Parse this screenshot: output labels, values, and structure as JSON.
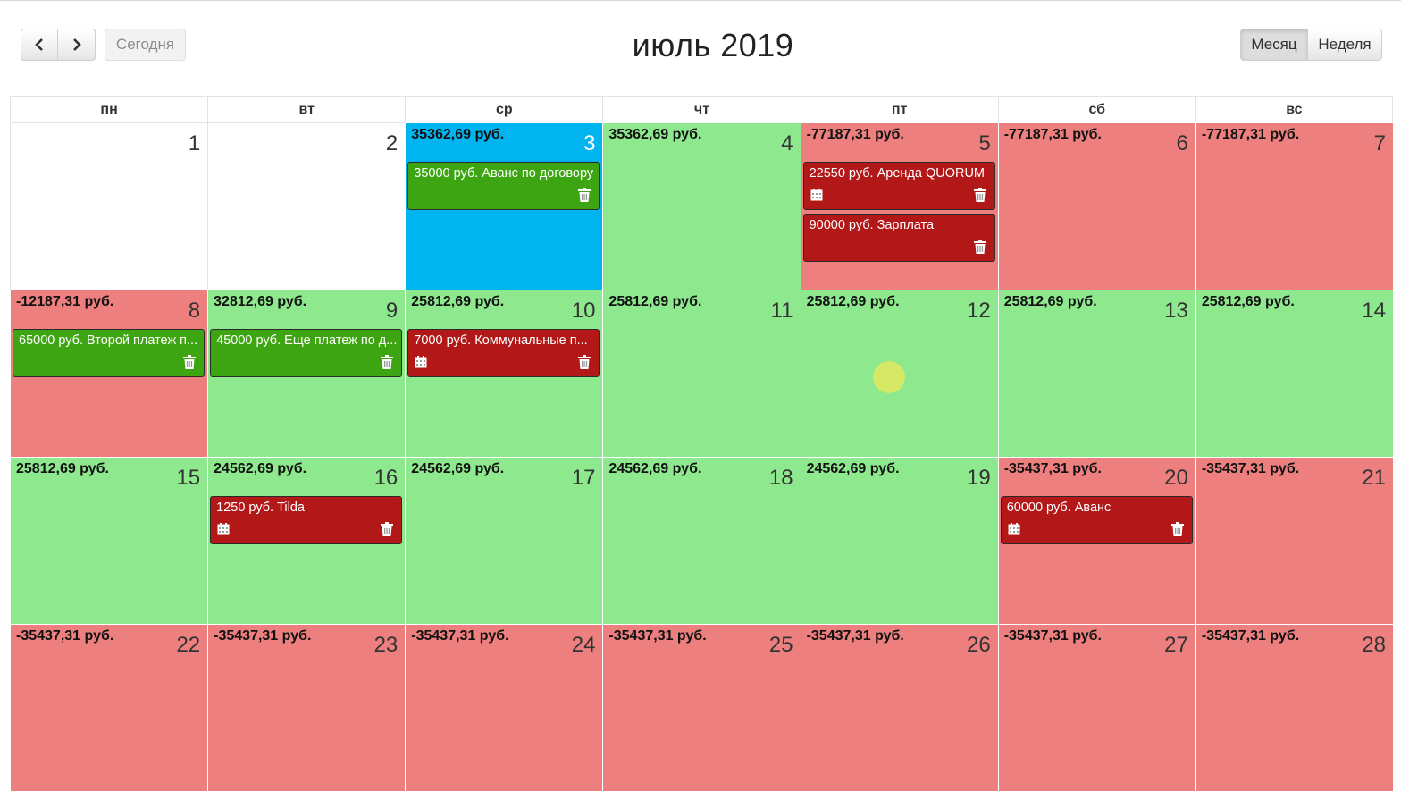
{
  "toolbar": {
    "prev_icon": "chevron-left-icon",
    "next_icon": "chevron-right-icon",
    "today_label": "Сегодня",
    "title": "июль 2019",
    "month_label": "Месяц",
    "week_label": "Неделя"
  },
  "weekdays": [
    "пн",
    "вт",
    "ср",
    "чт",
    "пт",
    "сб",
    "вс"
  ],
  "colors": {
    "positive": "#8ee88e",
    "negative": "#ed7f7f",
    "today": "#00b4ef",
    "income_event": "#3ea512",
    "expense_event": "#b21818"
  },
  "weeks": [
    [
      {
        "day": "1",
        "state": "neutral",
        "balance": ""
      },
      {
        "day": "2",
        "state": "neutral",
        "balance": ""
      },
      {
        "day": "3",
        "state": "today",
        "balance": "35362,69 руб.",
        "events": [
          {
            "text": "35000 руб. Аванс по договору",
            "type": "income",
            "calendar_icon": false
          }
        ]
      },
      {
        "day": "4",
        "state": "pos",
        "balance": "35362,69 руб."
      },
      {
        "day": "5",
        "state": "neg",
        "balance": "-77187,31 руб.",
        "events": [
          {
            "text": "22550 руб. Аренда QUORUM",
            "type": "expense",
            "calendar_icon": true
          },
          {
            "text": "90000 руб. Зарплата",
            "type": "expense",
            "calendar_icon": false
          }
        ]
      },
      {
        "day": "6",
        "state": "neg",
        "balance": "-77187,31 руб."
      },
      {
        "day": "7",
        "state": "neg",
        "balance": "-77187,31 руб."
      }
    ],
    [
      {
        "day": "8",
        "state": "neg",
        "balance": "-12187,31 руб.",
        "events": [
          {
            "text": "65000 руб. Второй платеж п...",
            "type": "income",
            "calendar_icon": false
          }
        ]
      },
      {
        "day": "9",
        "state": "pos",
        "balance": "32812,69 руб.",
        "events": [
          {
            "text": "45000 руб. Еще платеж по д...",
            "type": "income",
            "calendar_icon": false
          }
        ]
      },
      {
        "day": "10",
        "state": "pos",
        "balance": "25812,69 руб.",
        "events": [
          {
            "text": "7000 руб. Коммунальные п...",
            "type": "expense",
            "calendar_icon": true
          }
        ]
      },
      {
        "day": "11",
        "state": "pos",
        "balance": "25812,69 руб."
      },
      {
        "day": "12",
        "state": "pos",
        "balance": "25812,69 руб."
      },
      {
        "day": "13",
        "state": "pos",
        "balance": "25812,69 руб."
      },
      {
        "day": "14",
        "state": "pos",
        "balance": "25812,69 руб."
      }
    ],
    [
      {
        "day": "15",
        "state": "pos",
        "balance": "25812,69 руб."
      },
      {
        "day": "16",
        "state": "pos",
        "balance": "24562,69 руб.",
        "events": [
          {
            "text": "1250 руб. Tilda",
            "type": "expense",
            "calendar_icon": true
          }
        ]
      },
      {
        "day": "17",
        "state": "pos",
        "balance": "24562,69 руб."
      },
      {
        "day": "18",
        "state": "pos",
        "balance": "24562,69 руб."
      },
      {
        "day": "19",
        "state": "pos",
        "balance": "24562,69 руб."
      },
      {
        "day": "20",
        "state": "neg",
        "balance": "-35437,31 руб.",
        "events": [
          {
            "text": "60000 руб. Аванс",
            "type": "expense",
            "calendar_icon": true
          }
        ]
      },
      {
        "day": "21",
        "state": "neg",
        "balance": "-35437,31 руб."
      }
    ],
    [
      {
        "day": "22",
        "state": "neg",
        "balance": "-35437,31 руб."
      },
      {
        "day": "23",
        "state": "neg",
        "balance": "-35437,31 руб."
      },
      {
        "day": "24",
        "state": "neg",
        "balance": "-35437,31 руб."
      },
      {
        "day": "25",
        "state": "neg",
        "balance": "-35437,31 руб."
      },
      {
        "day": "26",
        "state": "neg",
        "balance": "-35437,31 руб."
      },
      {
        "day": "27",
        "state": "neg",
        "balance": "-35437,31 руб."
      },
      {
        "day": "28",
        "state": "neg",
        "balance": "-35437,31 руб."
      }
    ]
  ]
}
